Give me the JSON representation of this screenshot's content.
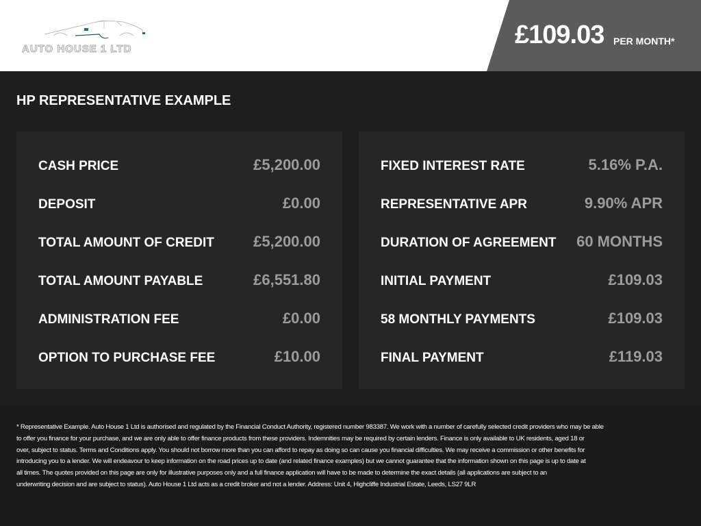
{
  "header": {
    "logo_text": "AUTO HOUSE 1 LTD",
    "price": "£109.03",
    "per_month": "PER MONTH*"
  },
  "title": "HP REPRESENTATIVE EXAMPLE",
  "left": [
    {
      "label": "CASH PRICE",
      "value": "£5,200.00"
    },
    {
      "label": "DEPOSIT",
      "value": "£0.00"
    },
    {
      "label": "TOTAL AMOUNT OF CREDIT",
      "value": "£5,200.00"
    },
    {
      "label": "TOTAL AMOUNT PAYABLE",
      "value": "£6,551.80"
    },
    {
      "label": "ADMINISTRATION FEE",
      "value": "£0.00"
    },
    {
      "label": "OPTION TO PURCHASE FEE",
      "value": "£10.00"
    }
  ],
  "right": [
    {
      "label": "FIXED INTEREST RATE",
      "value": "5.16% P.A."
    },
    {
      "label": "REPRESENTATIVE APR",
      "value": "9.90% APR"
    },
    {
      "label": "DURATION OF AGREEMENT",
      "value": "60 MONTHS"
    },
    {
      "label": "INITIAL PAYMENT",
      "value": "£109.03"
    },
    {
      "label": "58 MONTHLY PAYMENTS",
      "value": "£109.03"
    },
    {
      "label": "FINAL PAYMENT",
      "value": "£119.03"
    }
  ],
  "disclaimer": [
    "* Representative Example. Auto House 1 Ltd is authorised and regulated by the Financial Conduct Authority, registered number 983387. We work with a number of carefully selected credit providers who may be able",
    "to offer you finance for your purchase, and we are only able to offer finance products from these providers. Indemnities may be required by certain lenders. Finance is only available to UK residents, aged 18 or",
    "over, subject to status. Terms and Conditions apply. You should not borrow more than you can afford to repay as doing so can cause you financial difficulties. We may receive a commission or other benefits for",
    "introducing you to a lender. We will endeavour to keep information on the road prices up to date (and related finance examples) but we cannot guarantee that the information shown on this page is up to date at",
    "all times. The quotes provided on this page are only for illustrative purposes only and a full finance application will have to be made to determine the exact details (all applications are subject to an",
    "underwriting decision and are subject to status). Auto House 1 Ltd acts as a credit broker and not a lender. Address: Unit 4, Highcliffe Industrial Estate, Leeds, LS27 9LR"
  ]
}
